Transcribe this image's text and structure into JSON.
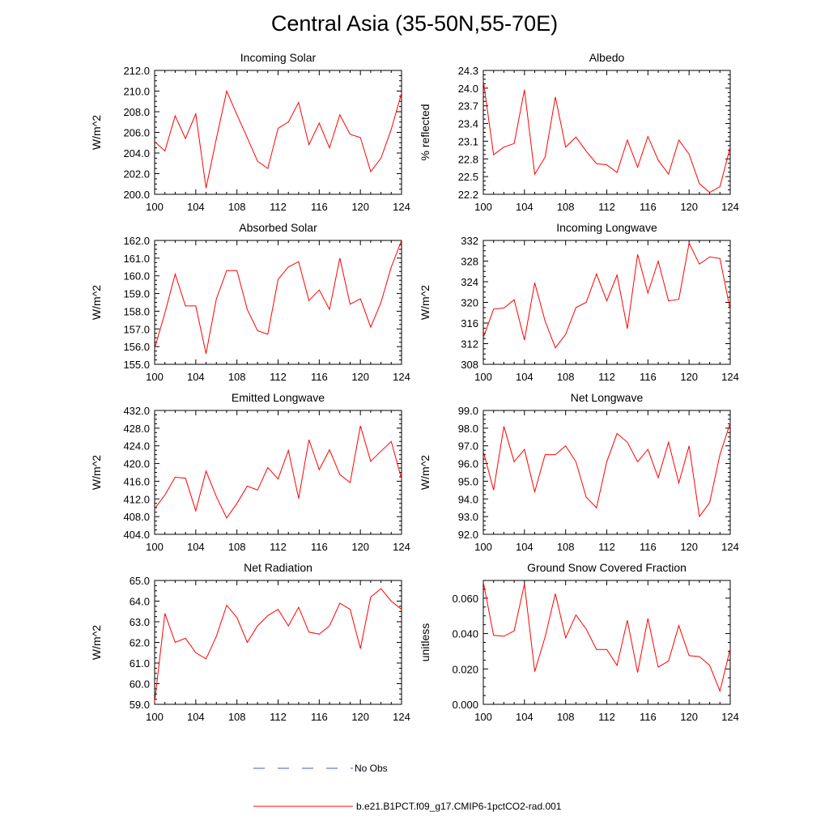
{
  "page": {
    "title": "Central Asia (35-50N,55-70E)"
  },
  "legend": {
    "items": [
      {
        "label": "No Obs",
        "color": "#3f57c9",
        "style": "dashed"
      },
      {
        "label": "b.e21.B1PCT.f09_g17.CMIP6-1pctCO2-rad.001",
        "color": "#ff0000",
        "style": "solid"
      }
    ]
  },
  "chart_data": [
    {
      "type": "line",
      "title": "Incoming Solar",
      "xlabel": "",
      "ylabel": "W/m^2",
      "xlim": [
        100,
        124
      ],
      "ylim": [
        200.0,
        212.0
      ],
      "xticks": [
        "100",
        "104",
        "108",
        "112",
        "116",
        "120",
        "124"
      ],
      "yticks": [
        "200.0",
        "202.0",
        "204.0",
        "206.0",
        "208.0",
        "210.0",
        "212.0"
      ],
      "x": [
        100,
        101,
        102,
        103,
        104,
        105,
        106,
        107,
        108,
        109,
        110,
        111,
        112,
        113,
        114,
        115,
        116,
        117,
        118,
        119,
        120,
        121,
        122,
        123,
        124
      ],
      "series": [
        {
          "name": "b.e21.B1PCT.f09_g17.CMIP6-1pctCO2-rad.001",
          "color": "#ff0000",
          "values": [
            205.1,
            204.2,
            207.6,
            205.4,
            207.8,
            200.6,
            205.4,
            210.0,
            207.7,
            205.5,
            203.2,
            202.5,
            206.4,
            207.0,
            208.9,
            204.8,
            206.9,
            204.5,
            207.7,
            205.8,
            205.5,
            202.2,
            203.5,
            206.3,
            209.8
          ]
        }
      ]
    },
    {
      "type": "line",
      "title": "Albedo",
      "xlabel": "",
      "ylabel": "% reflected",
      "xlim": [
        100,
        124
      ],
      "ylim": [
        22.2,
        24.3
      ],
      "xticks": [
        "100",
        "104",
        "108",
        "112",
        "116",
        "120",
        "124"
      ],
      "yticks": [
        "22.2",
        "22.5",
        "22.8",
        "23.1",
        "23.4",
        "23.7",
        "24.0",
        "24.3"
      ],
      "x": [
        100,
        101,
        102,
        103,
        104,
        105,
        106,
        107,
        108,
        109,
        110,
        111,
        112,
        113,
        114,
        115,
        116,
        117,
        118,
        119,
        120,
        121,
        122,
        123,
        124
      ],
      "series": [
        {
          "name": "b.e21.B1PCT.f09_g17.CMIP6-1pctCO2-rad.001",
          "color": "#ff0000",
          "values": [
            24.13,
            22.87,
            23.0,
            23.06,
            23.97,
            22.54,
            22.83,
            23.85,
            23.0,
            23.17,
            22.93,
            22.72,
            22.7,
            22.57,
            23.12,
            22.66,
            23.18,
            22.78,
            22.54,
            23.12,
            22.88,
            22.38,
            22.23,
            22.33,
            23.0
          ]
        }
      ]
    },
    {
      "type": "line",
      "title": "Absorbed Solar",
      "xlabel": "",
      "ylabel": "W/m^2",
      "xlim": [
        100,
        124
      ],
      "ylim": [
        155.0,
        162.0
      ],
      "xticks": [
        "100",
        "104",
        "108",
        "112",
        "116",
        "120",
        "124"
      ],
      "yticks": [
        "155.0",
        "156.0",
        "157.0",
        "158.0",
        "159.0",
        "160.0",
        "161.0",
        "162.0"
      ],
      "x": [
        100,
        101,
        102,
        103,
        104,
        105,
        106,
        107,
        108,
        109,
        110,
        111,
        112,
        113,
        114,
        115,
        116,
        117,
        118,
        119,
        120,
        121,
        122,
        123,
        124
      ],
      "series": [
        {
          "name": "b.e21.B1PCT.f09_g17.CMIP6-1pctCO2-rad.001",
          "color": "#ff0000",
          "values": [
            155.9,
            157.9,
            160.1,
            158.3,
            158.3,
            155.6,
            158.7,
            160.3,
            160.3,
            158.1,
            156.9,
            156.7,
            159.8,
            160.5,
            160.8,
            158.6,
            159.2,
            158.1,
            161.0,
            158.4,
            158.7,
            157.1,
            158.5,
            160.5,
            162.0
          ]
        }
      ]
    },
    {
      "type": "line",
      "title": "Incoming Longwave",
      "xlabel": "",
      "ylabel": "W/m^2",
      "xlim": [
        100,
        124
      ],
      "ylim": [
        308,
        332
      ],
      "xticks": [
        "100",
        "104",
        "108",
        "112",
        "116",
        "120",
        "124"
      ],
      "yticks": [
        "308",
        "312",
        "316",
        "320",
        "324",
        "328",
        "332"
      ],
      "x": [
        100,
        101,
        102,
        103,
        104,
        105,
        106,
        107,
        108,
        109,
        110,
        111,
        112,
        113,
        114,
        115,
        116,
        117,
        118,
        119,
        120,
        121,
        122,
        123,
        124
      ],
      "series": [
        {
          "name": "b.e21.B1PCT.f09_g17.CMIP6-1pctCO2-rad.001",
          "color": "#ff0000",
          "values": [
            313.2,
            318.7,
            318.9,
            320.5,
            312.7,
            323.8,
            316.4,
            311.2,
            313.8,
            319.0,
            320.0,
            325.5,
            320.3,
            325.3,
            314.9,
            329.3,
            321.8,
            328.0,
            320.3,
            320.6,
            331.5,
            327.4,
            328.8,
            328.5,
            318.5
          ]
        }
      ]
    },
    {
      "type": "line",
      "title": "Emitted Longwave",
      "xlabel": "",
      "ylabel": "W/m^2",
      "xlim": [
        100,
        124
      ],
      "ylim": [
        404.0,
        432.0
      ],
      "xticks": [
        "100",
        "104",
        "108",
        "112",
        "116",
        "120",
        "124"
      ],
      "yticks": [
        "404.0",
        "408.0",
        "412.0",
        "416.0",
        "420.0",
        "424.0",
        "428.0",
        "432.0"
      ],
      "x": [
        100,
        101,
        102,
        103,
        104,
        105,
        106,
        107,
        108,
        109,
        110,
        111,
        112,
        113,
        114,
        115,
        116,
        117,
        118,
        119,
        120,
        121,
        122,
        123,
        124
      ],
      "series": [
        {
          "name": "b.e21.B1PCT.f09_g17.CMIP6-1pctCO2-rad.001",
          "color": "#ff0000",
          "values": [
            409.8,
            412.9,
            416.9,
            416.7,
            409.3,
            418.3,
            412.5,
            407.7,
            411.0,
            414.9,
            414.0,
            419.1,
            416.5,
            423.0,
            412.1,
            425.4,
            418.6,
            423.1,
            417.5,
            415.7,
            428.5,
            420.5,
            422.8,
            425.0,
            416.5
          ]
        }
      ]
    },
    {
      "type": "line",
      "title": "Net Longwave",
      "xlabel": "",
      "ylabel": "W/m^2",
      "xlim": [
        100,
        124
      ],
      "ylim": [
        92.0,
        99.0
      ],
      "xticks": [
        "100",
        "104",
        "108",
        "112",
        "116",
        "120",
        "124"
      ],
      "yticks": [
        "92.0",
        "93.0",
        "94.0",
        "95.0",
        "96.0",
        "97.0",
        "98.0",
        "99.0"
      ],
      "x": [
        100,
        101,
        102,
        103,
        104,
        105,
        106,
        107,
        108,
        109,
        110,
        111,
        112,
        113,
        114,
        115,
        116,
        117,
        118,
        119,
        120,
        121,
        122,
        123,
        124
      ],
      "series": [
        {
          "name": "b.e21.B1PCT.f09_g17.CMIP6-1pctCO2-rad.001",
          "color": "#ff0000",
          "values": [
            96.7,
            94.5,
            98.1,
            96.1,
            96.8,
            94.4,
            96.5,
            96.5,
            97.0,
            96.1,
            94.1,
            93.5,
            96.1,
            97.7,
            97.2,
            96.1,
            96.8,
            95.2,
            97.2,
            94.9,
            97.0,
            93.0,
            93.8,
            96.5,
            98.3
          ]
        }
      ]
    },
    {
      "type": "line",
      "title": "Net Radiation",
      "xlabel": "",
      "ylabel": "W/m^2",
      "xlim": [
        100,
        124
      ],
      "ylim": [
        59.0,
        65.0
      ],
      "xticks": [
        "100",
        "104",
        "108",
        "112",
        "116",
        "120",
        "124"
      ],
      "yticks": [
        "59.0",
        "60.0",
        "61.0",
        "62.0",
        "63.0",
        "64.0",
        "65.0"
      ],
      "x": [
        100,
        101,
        102,
        103,
        104,
        105,
        106,
        107,
        108,
        109,
        110,
        111,
        112,
        113,
        114,
        115,
        116,
        117,
        118,
        119,
        120,
        121,
        122,
        123,
        124
      ],
      "series": [
        {
          "name": "b.e21.B1PCT.f09_g17.CMIP6-1pctCO2-rad.001",
          "color": "#ff0000",
          "values": [
            59.1,
            63.4,
            62.0,
            62.2,
            61.5,
            61.2,
            62.3,
            63.8,
            63.2,
            62.0,
            62.8,
            63.3,
            63.6,
            62.8,
            63.7,
            62.5,
            62.4,
            62.8,
            63.9,
            63.6,
            61.7,
            64.2,
            64.6,
            64.0,
            63.6
          ]
        }
      ]
    },
    {
      "type": "line",
      "title": "Ground Snow Covered Fraction",
      "xlabel": "",
      "ylabel": "unitless",
      "xlim": [
        100,
        124
      ],
      "ylim": [
        0.0,
        0.07
      ],
      "xticks": [
        "100",
        "104",
        "108",
        "112",
        "116",
        "120",
        "124"
      ],
      "yticks": [
        "0.000",
        "0.020",
        "0.040",
        "0.060"
      ],
      "x": [
        100,
        101,
        102,
        103,
        104,
        105,
        106,
        107,
        108,
        109,
        110,
        111,
        112,
        113,
        114,
        115,
        116,
        117,
        118,
        119,
        120,
        121,
        122,
        123,
        124
      ],
      "series": [
        {
          "name": "b.e21.B1PCT.f09_g17.CMIP6-1pctCO2-rad.001",
          "color": "#ff0000",
          "values": [
            0.069,
            0.039,
            0.0385,
            0.0415,
            0.068,
            0.0185,
            0.038,
            0.0625,
            0.0375,
            0.0505,
            0.0425,
            0.031,
            0.031,
            0.022,
            0.0475,
            0.018,
            0.0485,
            0.021,
            0.0245,
            0.0445,
            0.0275,
            0.027,
            0.022,
            0.0075,
            0.0315
          ]
        }
      ]
    }
  ]
}
